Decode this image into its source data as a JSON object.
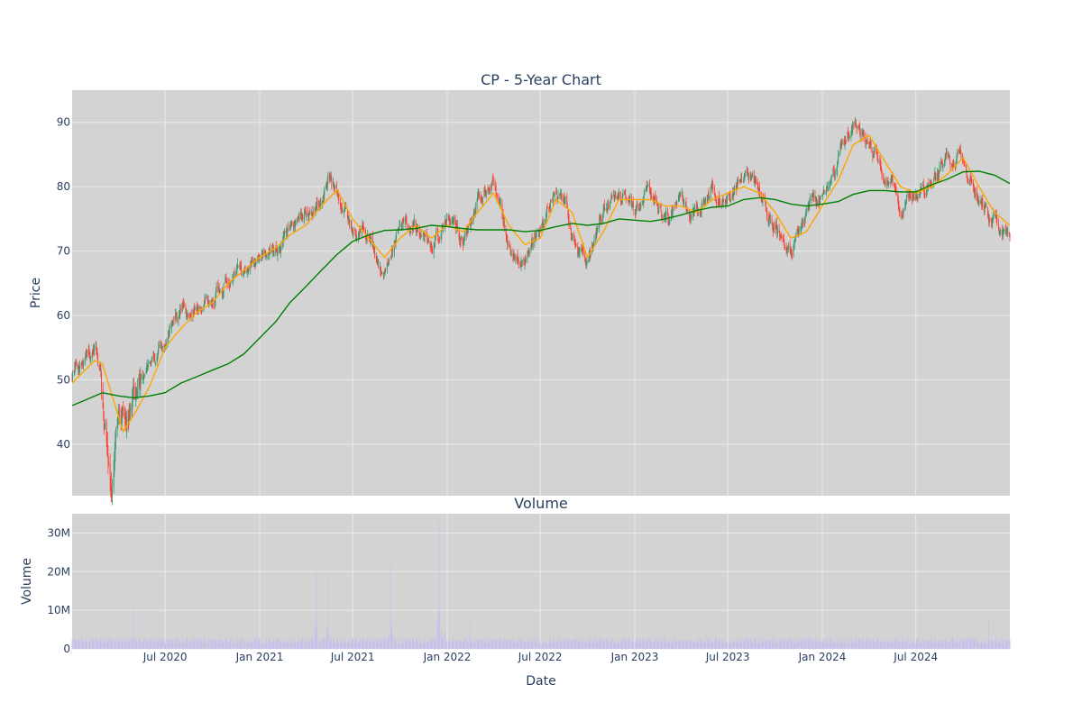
{
  "titles": {
    "price_panel": "CP - 5-Year Chart",
    "volume_panel": "Volume"
  },
  "axes": {
    "price_ylabel": "Price",
    "volume_ylabel": "Volume",
    "xlabel": "Date",
    "x_ticks": [
      "Jul 2020",
      "Jan 2021",
      "Jul 2021",
      "Jan 2022",
      "Jul 2022",
      "Jan 2023",
      "Jul 2023",
      "Jan 2024",
      "Jul 2024"
    ],
    "price_ticks": [
      "40",
      "50",
      "60",
      "70",
      "80",
      "90"
    ],
    "volume_ticks": [
      "0",
      "10M",
      "20M",
      "30M"
    ]
  },
  "colors": {
    "panel_bg": "#d3d3d3",
    "grid": "#ebebeb",
    "up": "#3d9970",
    "down": "#ff4136",
    "ma_short": "#ffa500",
    "ma_long": "#008000",
    "volume": "#c8c0ec"
  },
  "chart_data": [
    {
      "type": "candlestick",
      "title": "CP - 5-Year Chart",
      "xlabel": "",
      "ylabel": "Price",
      "xlim": [
        "2020-01-02",
        "2024-12-31"
      ],
      "ylim": [
        32,
        95
      ],
      "grid": true,
      "price_path": [
        [
          "2020-01-02",
          51
        ],
        [
          "2020-02-15",
          54
        ],
        [
          "2020-02-28",
          50
        ],
        [
          "2020-03-20",
          36
        ],
        [
          "2020-04-10",
          45
        ],
        [
          "2020-05-01",
          46
        ],
        [
          "2020-06-01",
          51
        ],
        [
          "2020-07-01",
          55
        ],
        [
          "2020-08-01",
          60
        ],
        [
          "2020-09-01",
          61
        ],
        [
          "2020-10-01",
          63
        ],
        [
          "2020-11-01",
          66
        ],
        [
          "2020-12-01",
          68
        ],
        [
          "2021-01-01",
          70
        ],
        [
          "2021-02-01",
          71
        ],
        [
          "2021-03-01",
          73
        ],
        [
          "2021-04-01",
          75
        ],
        [
          "2021-05-01",
          79
        ],
        [
          "2021-05-15",
          82
        ],
        [
          "2021-06-01",
          79
        ],
        [
          "2021-07-01",
          73
        ],
        [
          "2021-08-01",
          72
        ],
        [
          "2021-09-01",
          66
        ],
        [
          "2021-10-01",
          76
        ],
        [
          "2021-11-01",
          73
        ],
        [
          "2021-12-01",
          70
        ],
        [
          "2022-01-01",
          76
        ],
        [
          "2022-02-01",
          72
        ],
        [
          "2022-03-01",
          78
        ],
        [
          "2022-04-01",
          82
        ],
        [
          "2022-05-01",
          70
        ],
        [
          "2022-06-01",
          70
        ],
        [
          "2022-07-01",
          74
        ],
        [
          "2022-08-01",
          81
        ],
        [
          "2022-09-01",
          73
        ],
        [
          "2022-10-01",
          67
        ],
        [
          "2022-11-01",
          76
        ],
        [
          "2022-12-01",
          80
        ],
        [
          "2023-01-01",
          76
        ],
        [
          "2023-02-01",
          79
        ],
        [
          "2023-03-01",
          76
        ],
        [
          "2023-04-01",
          77
        ],
        [
          "2023-05-01",
          75
        ],
        [
          "2023-06-01",
          80
        ],
        [
          "2023-07-01",
          78
        ],
        [
          "2023-08-01",
          82
        ],
        [
          "2023-09-01",
          79
        ],
        [
          "2023-10-01",
          74
        ],
        [
          "2023-11-01",
          70
        ],
        [
          "2023-12-01",
          77
        ],
        [
          "2024-01-01",
          78
        ],
        [
          "2024-02-01",
          84
        ],
        [
          "2024-03-01",
          90
        ],
        [
          "2024-04-01",
          87
        ],
        [
          "2024-05-01",
          82
        ],
        [
          "2024-06-01",
          77
        ],
        [
          "2024-07-01",
          80
        ],
        [
          "2024-08-01",
          80
        ],
        [
          "2024-09-01",
          84
        ],
        [
          "2024-10-01",
          85
        ],
        [
          "2024-11-01",
          78
        ],
        [
          "2024-12-01",
          75
        ],
        [
          "2024-12-31",
          72
        ]
      ],
      "series": [
        {
          "type": "line",
          "values": [
            [
              "2020-01-02",
              49.5
            ],
            [
              "2020-02-15",
              53
            ],
            [
              "2020-03-01",
              52.5
            ],
            [
              "2020-04-10",
              42
            ],
            [
              "2020-05-01",
              44.5
            ],
            [
              "2020-06-01",
              49
            ],
            [
              "2020-07-01",
              55
            ],
            [
              "2020-08-01",
              58
            ],
            [
              "2020-09-01",
              60.5
            ],
            [
              "2020-10-01",
              62
            ],
            [
              "2020-11-01",
              65
            ],
            [
              "2020-12-01",
              67
            ],
            [
              "2021-01-01",
              69
            ],
            [
              "2021-02-01",
              70.5
            ],
            [
              "2021-03-01",
              72.5
            ],
            [
              "2021-04-01",
              74
            ],
            [
              "2021-05-01",
              77
            ],
            [
              "2021-06-01",
              79.5
            ],
            [
              "2021-07-01",
              75
            ],
            [
              "2021-08-01",
              72
            ],
            [
              "2021-09-01",
              69
            ],
            [
              "2021-10-01",
              72
            ],
            [
              "2021-11-01",
              74
            ],
            [
              "2021-12-01",
              72
            ],
            [
              "2022-01-01",
              74
            ],
            [
              "2022-02-01",
              73
            ],
            [
              "2022-03-01",
              76
            ],
            [
              "2022-04-01",
              79
            ],
            [
              "2022-05-01",
              74
            ],
            [
              "2022-06-01",
              71
            ],
            [
              "2022-07-01",
              72
            ],
            [
              "2022-08-01",
              78
            ],
            [
              "2022-09-01",
              76
            ],
            [
              "2022-10-01",
              69
            ],
            [
              "2022-11-01",
              73
            ],
            [
              "2022-12-01",
              78
            ],
            [
              "2023-01-01",
              78
            ],
            [
              "2023-02-01",
              78
            ],
            [
              "2023-03-01",
              77
            ],
            [
              "2023-04-01",
              77
            ],
            [
              "2023-05-01",
              76
            ],
            [
              "2023-06-01",
              78
            ],
            [
              "2023-07-01",
              79
            ],
            [
              "2023-08-01",
              80
            ],
            [
              "2023-09-01",
              79
            ],
            [
              "2023-10-01",
              76
            ],
            [
              "2023-11-01",
              72
            ],
            [
              "2023-12-01",
              73
            ],
            [
              "2024-01-01",
              77
            ],
            [
              "2024-02-01",
              81
            ],
            [
              "2024-03-01",
              86.5
            ],
            [
              "2024-04-01",
              88
            ],
            [
              "2024-05-01",
              84
            ],
            [
              "2024-06-01",
              80
            ],
            [
              "2024-07-01",
              79
            ],
            [
              "2024-08-01",
              80
            ],
            [
              "2024-09-01",
              82
            ],
            [
              "2024-10-01",
              84.5
            ],
            [
              "2024-11-01",
              80
            ],
            [
              "2024-12-01",
              76
            ],
            [
              "2024-12-31",
              74
            ]
          ],
          "color": "#ffa500"
        },
        {
          "type": "line",
          "values": [
            [
              "2020-01-02",
              46
            ],
            [
              "2020-02-01",
              47
            ],
            [
              "2020-03-01",
              48
            ],
            [
              "2020-04-01",
              47.5
            ],
            [
              "2020-05-01",
              47.2
            ],
            [
              "2020-06-01",
              47.5
            ],
            [
              "2020-07-01",
              48
            ],
            [
              "2020-08-01",
              49.5
            ],
            [
              "2020-09-01",
              50.5
            ],
            [
              "2020-10-01",
              51.5
            ],
            [
              "2020-11-01",
              52.5
            ],
            [
              "2020-12-01",
              54
            ],
            [
              "2021-01-01",
              56.5
            ],
            [
              "2021-02-01",
              59
            ],
            [
              "2021-03-01",
              62
            ],
            [
              "2021-04-01",
              64.5
            ],
            [
              "2021-05-01",
              67
            ],
            [
              "2021-06-01",
              69.5
            ],
            [
              "2021-07-01",
              71.5
            ],
            [
              "2021-08-01",
              72.5
            ],
            [
              "2021-09-01",
              73.2
            ],
            [
              "2021-10-01",
              73.3
            ],
            [
              "2021-11-01",
              73.5
            ],
            [
              "2021-12-01",
              74
            ],
            [
              "2022-01-01",
              73.8
            ],
            [
              "2022-02-01",
              73.5
            ],
            [
              "2022-03-01",
              73.3
            ],
            [
              "2022-04-01",
              73.3
            ],
            [
              "2022-05-01",
              73.3
            ],
            [
              "2022-06-01",
              73
            ],
            [
              "2022-07-01",
              73.2
            ],
            [
              "2022-08-01",
              73.8
            ],
            [
              "2022-09-01",
              74.3
            ],
            [
              "2022-10-01",
              74
            ],
            [
              "2022-11-01",
              74.3
            ],
            [
              "2022-12-01",
              75
            ],
            [
              "2023-01-01",
              74.8
            ],
            [
              "2023-02-01",
              74.6
            ],
            [
              "2023-03-01",
              75
            ],
            [
              "2023-04-01",
              75.6
            ],
            [
              "2023-05-01",
              76.3
            ],
            [
              "2023-06-01",
              76.8
            ],
            [
              "2023-07-01",
              77
            ],
            [
              "2023-08-01",
              78
            ],
            [
              "2023-09-01",
              78.3
            ],
            [
              "2023-10-01",
              78
            ],
            [
              "2023-11-01",
              77.3
            ],
            [
              "2023-12-01",
              77
            ],
            [
              "2024-01-01",
              77.3
            ],
            [
              "2024-02-01",
              77.7
            ],
            [
              "2024-03-01",
              78.8
            ],
            [
              "2024-04-01",
              79.4
            ],
            [
              "2024-05-01",
              79.4
            ],
            [
              "2024-06-01",
              79.2
            ],
            [
              "2024-07-01",
              79.2
            ],
            [
              "2024-08-01",
              80.3
            ],
            [
              "2024-09-01",
              81.2
            ],
            [
              "2024-10-01",
              82.3
            ],
            [
              "2024-11-01",
              82.4
            ],
            [
              "2024-12-01",
              81.8
            ],
            [
              "2024-12-31",
              80.5
            ]
          ],
          "color": "#008000"
        }
      ]
    },
    {
      "type": "bar",
      "title": "Volume",
      "xlabel": "Date",
      "ylabel": "Volume",
      "xlim": [
        "2020-01-02",
        "2024-12-31"
      ],
      "ylim": [
        0,
        35000000
      ],
      "grid": true,
      "volume_base": 2000000,
      "spikes": [
        [
          "2020-03-15",
          10000000
        ],
        [
          "2020-05-01",
          10000000
        ],
        [
          "2021-04-21",
          20000000
        ],
        [
          "2021-05-14",
          18000000
        ],
        [
          "2021-09-13",
          22000000
        ],
        [
          "2021-12-16",
          33000000
        ],
        [
          "2021-12-26",
          14000000
        ],
        [
          "2022-02-15",
          7000000
        ],
        [
          "2023-04-01",
          7000000
        ],
        [
          "2024-11-20",
          8000000
        ]
      ]
    }
  ]
}
